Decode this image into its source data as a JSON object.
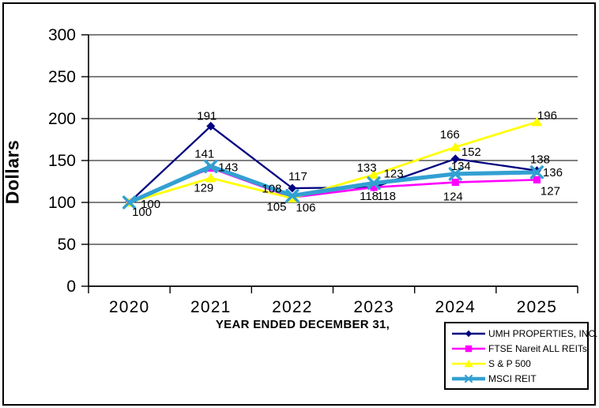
{
  "chart_data": {
    "type": "line",
    "title": "",
    "xlabel": "YEAR ENDED DECEMBER 31,",
    "ylabel": "Dollars",
    "ylim": [
      0,
      300
    ],
    "y_tick_interval": 50,
    "y_tick_labels": [
      "0",
      "50",
      "100",
      "150",
      "200",
      "250",
      "300"
    ],
    "grid": "horizontal",
    "legend_position": "bottom-right",
    "categories": [
      "2020",
      "2021",
      "2022",
      "2023",
      "2024",
      "2025"
    ],
    "series": [
      {
        "name": "UMH PROPERTIES, INC.",
        "color": "#000080",
        "marker": "diamond",
        "values": [
          100,
          191,
          117,
          118,
          152,
          138
        ]
      },
      {
        "name": "FTSE Nareit ALL REITs",
        "color": "#FF00FF",
        "marker": "square",
        "values": [
          100,
          141,
          106,
          118,
          124,
          127
        ]
      },
      {
        "name": "S & P 500",
        "color": "#FFFF00",
        "marker": "triangle",
        "values": [
          100,
          129,
          105,
          133,
          166,
          196
        ]
      },
      {
        "name": "MSCI REIT",
        "color": "#32A0D2",
        "marker": "x",
        "values": [
          100,
          143,
          108,
          123,
          134,
          136
        ]
      }
    ],
    "colors": {
      "axis": "#000000",
      "gridline": "#000000",
      "text": "#000000",
      "background": "#FFFFFF"
    }
  }
}
